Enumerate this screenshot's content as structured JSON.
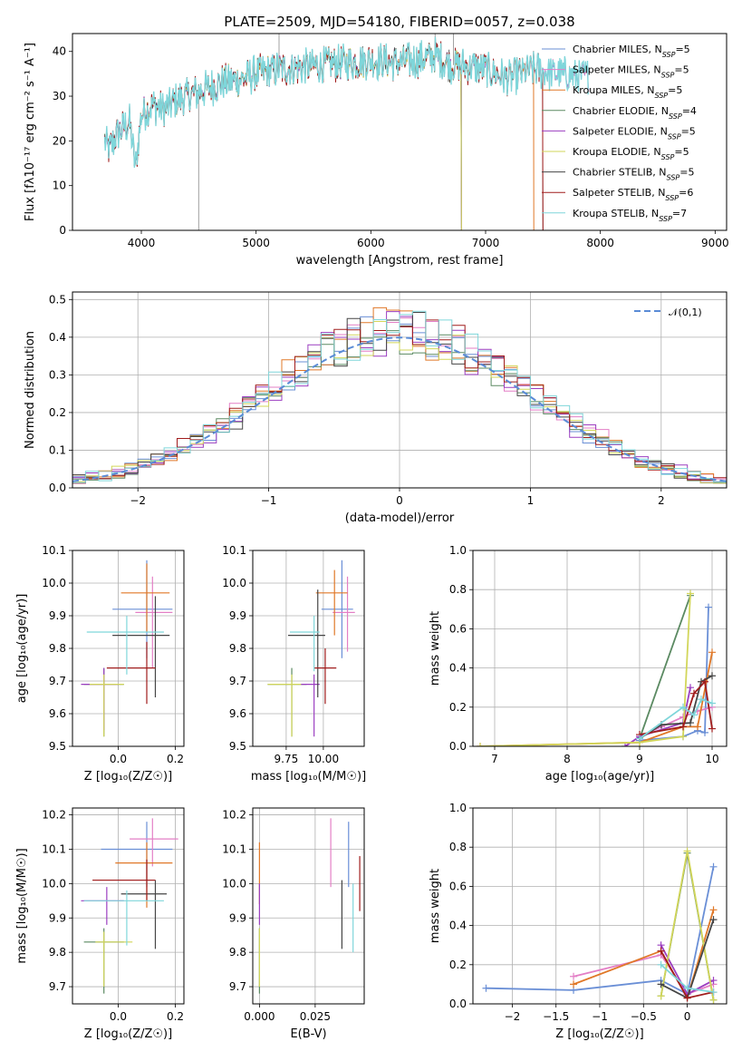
{
  "chart_data": [
    {
      "panel": "spectrum",
      "type": "line",
      "title": "PLATE=2509, MJD=54180, FIBERID=0057, z=0.038",
      "xlabel": "wavelength [Angstrom, rest frame]",
      "ylabel": "Flux [fλ10⁻¹⁷ erg cm⁻² s⁻¹ A⁻¹]",
      "xlim": [
        3400,
        9100
      ],
      "ylim": [
        0,
        44
      ],
      "xticks": [
        4000,
        5000,
        6000,
        7000,
        8000,
        9000
      ],
      "yticks": [
        0,
        10,
        20,
        30,
        40
      ],
      "grid": false,
      "legend_position": "top-right",
      "trend": {
        "x": [
          3680,
          3720,
          3800,
          3900,
          3950,
          4000,
          4100,
          4200,
          4300,
          4400,
          4500,
          4700,
          4900,
          5000,
          5200,
          5400,
          5600,
          5800,
          6000,
          6200,
          6400,
          6560,
          6700,
          6900,
          7000,
          7100,
          7200,
          7300,
          7400,
          7600,
          7800
        ],
        "y": [
          20,
          18,
          22,
          24,
          14,
          26,
          28,
          27,
          29,
          30,
          31,
          33,
          34,
          35,
          36,
          36.5,
          37,
          37.5,
          38,
          37.5,
          38,
          39,
          37,
          36.5,
          36,
          35,
          34,
          35,
          36,
          35,
          34.5
        ]
      },
      "series": [
        {
          "name": "Chabrier MILES, N_SSP=5",
          "color": "#6a8fd6",
          "lw": 1.0,
          "x_range": [
            3680,
            7900
          ]
        },
        {
          "name": "Salpeter MILES, N_SSP=5",
          "color": "#e37fc6",
          "lw": 1.0,
          "x_range": [
            3680,
            7900
          ]
        },
        {
          "name": "Kroupa MILES, N_SSP=5",
          "color": "#e07828",
          "lw": 1.0,
          "x_range": [
            3680,
            7420
          ]
        },
        {
          "name": "Chabrier ELODIE, N_SSP=4",
          "color": "#5b8a62",
          "lw": 1.0,
          "x_range": [
            3680,
            6790
          ]
        },
        {
          "name": "Salpeter ELODIE, N_SSP=5",
          "color": "#9b3ec0",
          "lw": 1.0,
          "x_range": [
            3680,
            6790
          ]
        },
        {
          "name": "Kroupa ELODIE, N_SSP=5",
          "color": "#d2d65a",
          "lw": 1.0,
          "x_range": [
            3900,
            6790
          ]
        },
        {
          "name": "Chabrier STELIB, N_SSP=5",
          "color": "#454545",
          "lw": 0.8,
          "x_range": [
            3680,
            7500
          ]
        },
        {
          "name": "Salpeter STELIB, N_SSP=6",
          "color": "#a01c1c",
          "lw": 1.0,
          "x_range": [
            3680,
            7500
          ]
        },
        {
          "name": "Kroupa STELIB, N_SSP=7",
          "color": "#7fd6da",
          "lw": 1.3,
          "x_range": [
            3680,
            7900
          ]
        }
      ],
      "data_line": {
        "color": "#a0a0a0",
        "spikes": [
          {
            "x": 4500,
            "y": 0
          },
          {
            "x": 5200,
            "y": 44
          },
          {
            "x": 6560,
            "y": 44
          },
          {
            "x": 6720,
            "y": 44
          },
          {
            "x": 6790,
            "y": 0
          }
        ]
      }
    },
    {
      "panel": "residuals",
      "type": "histogram",
      "xlabel": "(data-model)/error",
      "ylabel": "Normed distribution",
      "xlim": [
        -2.5,
        2.5
      ],
      "ylim": [
        0,
        0.52
      ],
      "xticks": [
        -2,
        -1,
        0,
        1,
        2
      ],
      "yticks": [
        0.0,
        0.1,
        0.2,
        0.3,
        0.4,
        0.5
      ],
      "grid": true,
      "legend_position": "top-right",
      "legend": "𝒩(0,1)",
      "reference": {
        "name": "𝒩(0,1)",
        "color": "#5a8bd6",
        "dash": true
      },
      "bin_width": 0.1
    },
    {
      "panel": "age-vs-Z",
      "type": "scatter",
      "xlabel": "Z [log₁₀(Z/Z☉)]",
      "ylabel": "age  [log₁₀(age/yr)]",
      "xlim": [
        -0.16,
        0.23
      ],
      "ylim": [
        9.5,
        10.1
      ],
      "xticks": [
        0.0,
        0.2
      ],
      "xticklabels": [
        "0.0",
        "0.2"
      ],
      "yticks": [
        9.5,
        9.6,
        9.7,
        9.8,
        9.9,
        10.0,
        10.1
      ],
      "grid": true,
      "points": [
        {
          "c": "#6a8fd6",
          "x": 0.1,
          "y": 9.92,
          "xe": [
            -0.02,
            0.19
          ],
          "ye": [
            9.77,
            10.07
          ]
        },
        {
          "c": "#e37fc6",
          "x": 0.12,
          "y": 9.91,
          "xe": [
            0.06,
            0.19
          ],
          "ye": [
            9.74,
            10.02
          ]
        },
        {
          "c": "#e07828",
          "x": 0.1,
          "y": 9.97,
          "xe": [
            0.01,
            0.18
          ],
          "ye": [
            9.85,
            10.06
          ]
        },
        {
          "c": "#5b8a62",
          "x": -0.05,
          "y": 9.69,
          "xe": [
            -0.12,
            0.02
          ],
          "ye": [
            9.53,
            9.74
          ]
        },
        {
          "c": "#9b3ec0",
          "x": -0.05,
          "y": 9.69,
          "xe": [
            -0.13,
            0.0
          ],
          "ye": [
            9.55,
            9.74
          ]
        },
        {
          "c": "#d2d65a",
          "x": -0.05,
          "y": 9.69,
          "xe": [
            -0.1,
            0.02
          ],
          "ye": [
            9.53,
            9.72
          ]
        },
        {
          "c": "#454545",
          "x": 0.13,
          "y": 9.84,
          "xe": [
            -0.02,
            0.18
          ],
          "ye": [
            9.65,
            9.96
          ]
        },
        {
          "c": "#a01c1c",
          "x": 0.1,
          "y": 9.74,
          "xe": [
            -0.04,
            0.13
          ],
          "ye": [
            9.63,
            9.82
          ]
        },
        {
          "c": "#7fd6da",
          "x": 0.03,
          "y": 9.85,
          "xe": [
            -0.11,
            0.16
          ],
          "ye": [
            9.72,
            9.9
          ]
        }
      ]
    },
    {
      "panel": "age-vs-mass",
      "type": "scatter",
      "xlabel": "mass [log₁₀(M/M☉)]",
      "ylabel": "",
      "xlim": [
        9.62,
        10.22
      ],
      "ylim": [
        9.5,
        10.1
      ],
      "xticks": [
        9.8,
        10.0
      ],
      "xticklabels": [
        "9.75",
        "10.00"
      ],
      "yticks": [
        9.5,
        9.6,
        9.7,
        9.8,
        9.9,
        10.0,
        10.1
      ],
      "grid": true,
      "points": [
        {
          "c": "#6a8fd6",
          "x": 10.1,
          "y": 9.92,
          "xe": [
            9.99,
            10.16
          ],
          "ye": [
            9.77,
            10.07
          ]
        },
        {
          "c": "#e37fc6",
          "x": 10.13,
          "y": 9.91,
          "xe": [
            10.05,
            10.17
          ],
          "ye": [
            9.79,
            10.02
          ]
        },
        {
          "c": "#e07828",
          "x": 10.06,
          "y": 9.97,
          "xe": [
            9.96,
            10.13
          ],
          "ye": [
            9.84,
            10.04
          ]
        },
        {
          "c": "#5b8a62",
          "x": 9.83,
          "y": 9.69,
          "xe": [
            9.7,
            9.91
          ],
          "ye": [
            9.53,
            9.74
          ]
        },
        {
          "c": "#9b3ec0",
          "x": 9.95,
          "y": 9.69,
          "xe": [
            9.88,
            9.98
          ],
          "ye": [
            9.53,
            9.72
          ]
        },
        {
          "c": "#d2d65a",
          "x": 9.83,
          "y": 9.69,
          "xe": [
            9.7,
            9.88
          ],
          "ye": [
            9.53,
            9.72
          ]
        },
        {
          "c": "#454545",
          "x": 9.97,
          "y": 9.84,
          "xe": [
            9.81,
            10.01
          ],
          "ye": [
            9.65,
            9.98
          ]
        },
        {
          "c": "#a01c1c",
          "x": 10.01,
          "y": 9.74,
          "xe": [
            9.95,
            10.07
          ],
          "ye": [
            9.63,
            9.8
          ]
        },
        {
          "c": "#7fd6da",
          "x": 9.95,
          "y": 9.85,
          "xe": [
            9.82,
            9.98
          ],
          "ye": [
            9.73,
            9.9
          ]
        }
      ]
    },
    {
      "panel": "mass-weight-vs-age",
      "type": "line",
      "xlabel": "age  [log₁₀(age/yr)]",
      "ylabel": "mass weight",
      "xlim": [
        6.7,
        10.2
      ],
      "ylim": [
        0,
        1.0
      ],
      "xticks": [
        7,
        8,
        9,
        10
      ],
      "yticks": [
        0.0,
        0.2,
        0.4,
        0.6,
        0.8,
        1.0
      ],
      "grid": true,
      "series": [
        {
          "c": "#6a8fd6",
          "x": [
            9.0,
            9.6,
            9.8,
            9.9,
            9.95
          ],
          "y": [
            0.03,
            0.05,
            0.08,
            0.07,
            0.71
          ]
        },
        {
          "c": "#e37fc6",
          "x": [
            9.0,
            9.3,
            9.6,
            9.8,
            10.0
          ],
          "y": [
            0.05,
            0.1,
            0.15,
            0.18,
            0.2
          ]
        },
        {
          "c": "#e07828",
          "x": [
            6.8,
            9.0,
            9.6,
            9.8,
            10.0
          ],
          "y": [
            0.0,
            0.02,
            0.1,
            0.1,
            0.48
          ]
        },
        {
          "c": "#5b8a62",
          "x": [
            9.0,
            9.7
          ],
          "y": [
            0.04,
            0.77
          ]
        },
        {
          "c": "#9b3ec0",
          "x": [
            8.8,
            9.0,
            9.6,
            9.7
          ],
          "y": [
            0.0,
            0.05,
            0.12,
            0.3
          ]
        },
        {
          "c": "#d2d65a",
          "x": [
            6.8,
            9.0,
            9.6,
            9.7
          ],
          "y": [
            0.0,
            0.02,
            0.05,
            0.78
          ]
        },
        {
          "c": "#454545",
          "x": [
            9.0,
            9.3,
            9.7,
            9.85,
            10.0
          ],
          "y": [
            0.04,
            0.11,
            0.12,
            0.33,
            0.36
          ]
        },
        {
          "c": "#a01c1c",
          "x": [
            9.0,
            9.6,
            9.75,
            9.9,
            10.0
          ],
          "y": [
            0.06,
            0.1,
            0.27,
            0.33,
            0.09
          ]
        },
        {
          "c": "#7fd6da",
          "x": [
            9.0,
            9.6,
            9.75,
            9.85,
            10.0
          ],
          "y": [
            0.04,
            0.2,
            0.16,
            0.24,
            0.22
          ]
        }
      ]
    },
    {
      "panel": "mass-vs-Z",
      "type": "scatter",
      "xlabel": "Z [log₁₀(Z/Z☉)]",
      "ylabel": "mass [log₁₀(M/M☉)]",
      "xlim": [
        -0.16,
        0.23
      ],
      "ylim": [
        9.65,
        10.22
      ],
      "xticks": [
        0.0,
        0.2
      ],
      "xticklabels": [
        "0.0",
        "0.2"
      ],
      "yticks": [
        9.7,
        9.8,
        9.9,
        10.0,
        10.1,
        10.2
      ],
      "grid": true,
      "points": [
        {
          "c": "#6a8fd6",
          "x": 0.1,
          "y": 10.1,
          "xe": [
            -0.06,
            0.19
          ],
          "ye": [
            9.99,
            10.18
          ]
        },
        {
          "c": "#e37fc6",
          "x": 0.12,
          "y": 10.13,
          "xe": [
            0.04,
            0.21
          ],
          "ye": [
            10.05,
            10.19
          ]
        },
        {
          "c": "#e07828",
          "x": 0.1,
          "y": 10.06,
          "xe": [
            -0.01,
            0.19
          ],
          "ye": [
            9.93,
            10.12
          ]
        },
        {
          "c": "#5b8a62",
          "x": -0.05,
          "y": 9.83,
          "xe": [
            -0.12,
            0.02
          ],
          "ye": [
            9.68,
            9.87
          ]
        },
        {
          "c": "#9b3ec0",
          "x": -0.04,
          "y": 9.95,
          "xe": [
            -0.13,
            0.02
          ],
          "ye": [
            9.88,
            9.99
          ]
        },
        {
          "c": "#d2d65a",
          "x": -0.05,
          "y": 9.83,
          "xe": [
            -0.08,
            0.05
          ],
          "ye": [
            9.7,
            9.86
          ]
        },
        {
          "c": "#454545",
          "x": 0.13,
          "y": 9.97,
          "xe": [
            0.01,
            0.17
          ],
          "ye": [
            9.81,
            10.01
          ]
        },
        {
          "c": "#a01c1c",
          "x": 0.1,
          "y": 10.01,
          "xe": [
            -0.09,
            0.13
          ],
          "ye": [
            9.95,
            10.07
          ]
        },
        {
          "c": "#7fd6da",
          "x": 0.03,
          "y": 9.95,
          "xe": [
            -0.12,
            0.16
          ],
          "ye": [
            9.82,
            9.98
          ]
        }
      ]
    },
    {
      "panel": "mass-vs-EBV",
      "type": "scatter",
      "xlabel": "E(B-V)",
      "ylabel": "",
      "xlim": [
        -0.003,
        0.047
      ],
      "ylim": [
        9.65,
        10.22
      ],
      "xticks": [
        0.0,
        0.025
      ],
      "xticklabels": [
        "0.000",
        "0.025"
      ],
      "yticks": [
        9.7,
        9.8,
        9.9,
        10.0,
        10.1,
        10.2
      ],
      "grid": true,
      "points": [
        {
          "c": "#6a8fd6",
          "x": 0.04,
          "y": 10.1,
          "ye": [
            9.99,
            10.18
          ]
        },
        {
          "c": "#e37fc6",
          "x": 0.032,
          "y": 10.13,
          "ye": [
            9.99,
            10.19
          ]
        },
        {
          "c": "#e07828",
          "x": 0.0,
          "y": 10.06,
          "ye": [
            9.94,
            10.12
          ]
        },
        {
          "c": "#5b8a62",
          "x": 0.0,
          "y": 9.83,
          "ye": [
            9.68,
            9.87
          ]
        },
        {
          "c": "#9b3ec0",
          "x": 0.0,
          "y": 9.95,
          "ye": [
            9.88,
            10.0
          ]
        },
        {
          "c": "#d2d65a",
          "x": 0.0,
          "y": 9.83,
          "ye": [
            9.7,
            9.87
          ]
        },
        {
          "c": "#454545",
          "x": 0.037,
          "y": 9.97,
          "ye": [
            9.81,
            10.01
          ]
        },
        {
          "c": "#a01c1c",
          "x": 0.045,
          "y": 10.01,
          "ye": [
            9.92,
            10.08
          ]
        },
        {
          "c": "#7fd6da",
          "x": 0.042,
          "y": 9.95,
          "ye": [
            9.8,
            10.0
          ]
        }
      ]
    },
    {
      "panel": "mass-weight-vs-Z",
      "type": "line",
      "xlabel": "Z [log₁₀(Z/Z☉)]",
      "ylabel": "mass weight",
      "xlim": [
        -2.45,
        0.45
      ],
      "ylim": [
        0,
        1.0
      ],
      "xticks": [
        -2.0,
        -1.5,
        -1.0,
        -0.5,
        0.0
      ],
      "yticks": [
        0.0,
        0.2,
        0.4,
        0.6,
        0.8,
        1.0
      ],
      "grid": true,
      "series": [
        {
          "c": "#6a8fd6",
          "x": [
            -2.3,
            -1.3,
            -0.3,
            0.0,
            0.3
          ],
          "y": [
            0.08,
            0.07,
            0.12,
            0.05,
            0.7
          ]
        },
        {
          "c": "#e37fc6",
          "x": [
            -1.3,
            -0.3,
            0.0,
            0.3
          ],
          "y": [
            0.14,
            0.25,
            0.05,
            0.1
          ]
        },
        {
          "c": "#e07828",
          "x": [
            -1.3,
            -0.3,
            0.0,
            0.3
          ],
          "y": [
            0.1,
            0.27,
            0.03,
            0.48
          ]
        },
        {
          "c": "#5b8a62",
          "x": [
            -0.3,
            0.0,
            0.3
          ],
          "y": [
            0.04,
            0.77,
            0.02
          ]
        },
        {
          "c": "#9b3ec0",
          "x": [
            -0.3,
            0.0,
            0.3
          ],
          "y": [
            0.3,
            0.05,
            0.12
          ]
        },
        {
          "c": "#d2d65a",
          "x": [
            -0.3,
            0.0,
            0.3
          ],
          "y": [
            0.04,
            0.78,
            0.02
          ]
        },
        {
          "c": "#454545",
          "x": [
            -0.3,
            0.0,
            0.3
          ],
          "y": [
            0.1,
            0.03,
            0.43
          ]
        },
        {
          "c": "#a01c1c",
          "x": [
            -0.3,
            0.0,
            0.3
          ],
          "y": [
            0.27,
            0.03,
            0.06
          ]
        },
        {
          "c": "#7fd6da",
          "x": [
            -0.3,
            0.0,
            0.3
          ],
          "y": [
            0.2,
            0.08,
            0.06
          ]
        }
      ]
    }
  ]
}
